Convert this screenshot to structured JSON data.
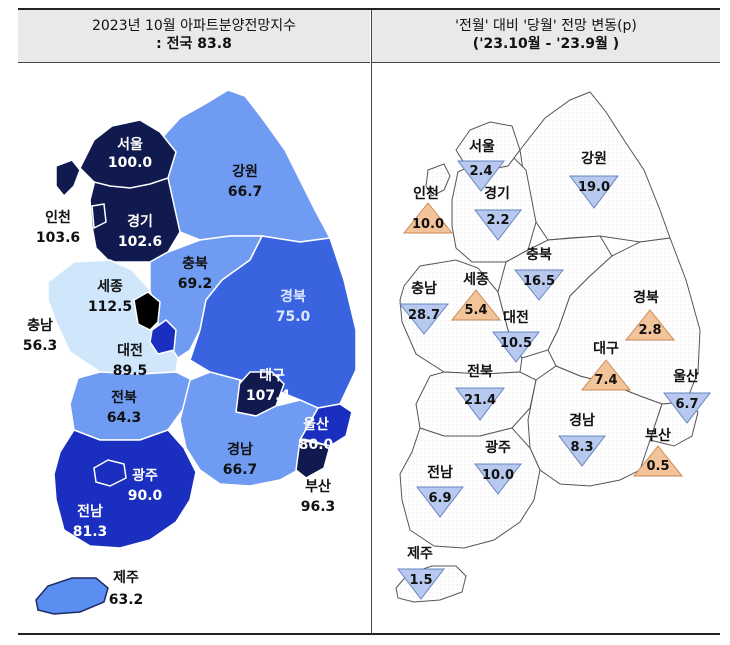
{
  "header": {
    "left_line1": "2023년 10월 아파트분양전망지수",
    "left_line2": ": 전국 83.8",
    "right_line1": "'전월' 대비 '당월' 전망 변동(p)",
    "right_line2": "('23.10월 - '23.9월 )"
  },
  "left_map": {
    "regions": [
      {
        "name": "서울",
        "value": "100.0",
        "color": "#101a4f"
      },
      {
        "name": "인천",
        "value": "103.6",
        "color": "#101a4f"
      },
      {
        "name": "경기",
        "value": "102.6",
        "color": "#101a4f"
      },
      {
        "name": "강원",
        "value": "66.7",
        "color": "#6f9bf2"
      },
      {
        "name": "충북",
        "value": "69.2",
        "color": "#6f9bf2"
      },
      {
        "name": "세종",
        "value": "112.5",
        "color": "#000000"
      },
      {
        "name": "충남",
        "value": "56.3",
        "color": "#cfe6fb"
      },
      {
        "name": "대전",
        "value": "89.5",
        "color": "#1a2fbf"
      },
      {
        "name": "경북",
        "value": "75.0",
        "color": "#3a63e0"
      },
      {
        "name": "대구",
        "value": "107.4",
        "color": "#101a4f"
      },
      {
        "name": "전북",
        "value": "64.3",
        "color": "#6f9bf2"
      },
      {
        "name": "울산",
        "value": "80.0",
        "color": "#1a2fbf"
      },
      {
        "name": "부산",
        "value": "96.3",
        "color": "#101a4f"
      },
      {
        "name": "경남",
        "value": "66.7",
        "color": "#6f9bf2"
      },
      {
        "name": "광주",
        "value": "90.0",
        "color": "#1a2fbf"
      },
      {
        "name": "전남",
        "value": "81.3",
        "color": "#1a2fbf"
      },
      {
        "name": "제주",
        "value": "63.2",
        "color": "#5a8ef0"
      }
    ]
  },
  "right_map": {
    "changes": [
      {
        "name": "서울",
        "value": "2.4",
        "direction": "down"
      },
      {
        "name": "인천",
        "value": "10.0",
        "direction": "up"
      },
      {
        "name": "경기",
        "value": "2.2",
        "direction": "down"
      },
      {
        "name": "강원",
        "value": "19.0",
        "direction": "down"
      },
      {
        "name": "충북",
        "value": "16.5",
        "direction": "down"
      },
      {
        "name": "충남",
        "value": "28.7",
        "direction": "down"
      },
      {
        "name": "세종",
        "value": "5.4",
        "direction": "up"
      },
      {
        "name": "대전",
        "value": "10.5",
        "direction": "down"
      },
      {
        "name": "경북",
        "value": "2.8",
        "direction": "up"
      },
      {
        "name": "대구",
        "value": "7.4",
        "direction": "up"
      },
      {
        "name": "전북",
        "value": "21.4",
        "direction": "down"
      },
      {
        "name": "울산",
        "value": "6.7",
        "direction": "down"
      },
      {
        "name": "경남",
        "value": "8.3",
        "direction": "down"
      },
      {
        "name": "부산",
        "value": "0.5",
        "direction": "up"
      },
      {
        "name": "광주",
        "value": "10.0",
        "direction": "down"
      },
      {
        "name": "전남",
        "value": "6.9",
        "direction": "down"
      },
      {
        "name": "제주",
        "value": "1.5",
        "direction": "down"
      }
    ]
  }
}
